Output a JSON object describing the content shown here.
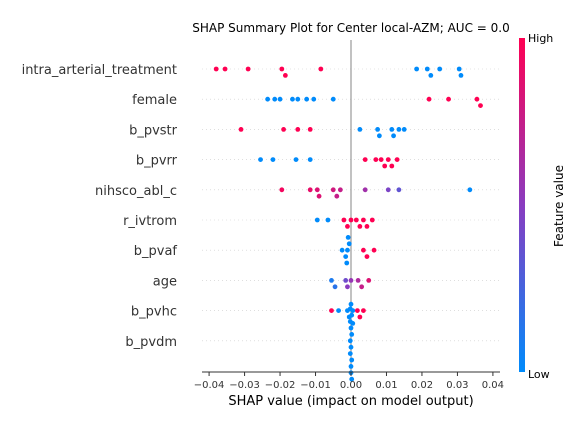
{
  "chart_data": {
    "type": "scatter",
    "title": "SHAP Summary Plot for Center local-AZM; AUC = 0.0",
    "xlabel": "SHAP value (impact on model output)",
    "xlim": [
      -0.042,
      0.042
    ],
    "xticks": [
      -0.04,
      -0.03,
      -0.02,
      -0.01,
      0.0,
      0.01,
      0.02,
      0.03,
      0.04
    ],
    "xtick_labels": [
      "−0.04",
      "−0.03",
      "−0.02",
      "−0.01",
      "0.00",
      "0.01",
      "0.02",
      "0.03",
      "0.04"
    ],
    "grid": false,
    "colorbar": {
      "label": "Feature value",
      "high": "High",
      "low": "Low",
      "low_color": "#008bfb",
      "high_color": "#ff0052"
    },
    "features": [
      "intra_arterial_treatment",
      "female",
      "b_pvstr",
      "b_pvrr",
      "nihsco_abl_c",
      "r_ivtrom",
      "b_pvaf",
      "age",
      "b_pvhc",
      "b_pvdm"
    ],
    "series": [
      {
        "feature": "intra_arterial_treatment",
        "points": [
          [
            -0.038,
            1.0
          ],
          [
            -0.0355,
            1.0
          ],
          [
            -0.029,
            1.0
          ],
          [
            -0.0195,
            1.0
          ],
          [
            -0.0185,
            1.0
          ],
          [
            -0.0085,
            1.0
          ],
          [
            0.0185,
            0.0
          ],
          [
            0.0215,
            0.0
          ],
          [
            0.0225,
            0.0
          ],
          [
            0.025,
            0.0
          ],
          [
            0.0305,
            0.0
          ],
          [
            0.031,
            0.0
          ]
        ]
      },
      {
        "feature": "female",
        "points": [
          [
            -0.0235,
            0.0
          ],
          [
            -0.0215,
            0.0
          ],
          [
            -0.02,
            0.0
          ],
          [
            -0.0165,
            0.0
          ],
          [
            -0.015,
            0.0
          ],
          [
            -0.0125,
            0.0
          ],
          [
            -0.0105,
            0.0
          ],
          [
            -0.005,
            0.0
          ],
          [
            0.022,
            1.0
          ],
          [
            0.0275,
            1.0
          ],
          [
            0.0355,
            1.0
          ],
          [
            0.0365,
            1.0
          ]
        ]
      },
      {
        "feature": "b_pvstr",
        "points": [
          [
            -0.031,
            1.0
          ],
          [
            -0.019,
            1.0
          ],
          [
            -0.015,
            1.0
          ],
          [
            -0.0115,
            1.0
          ],
          [
            0.0025,
            0.0
          ],
          [
            0.0075,
            0.0
          ],
          [
            0.008,
            0.0
          ],
          [
            0.0115,
            0.0
          ],
          [
            0.012,
            0.0
          ],
          [
            0.0135,
            0.0
          ],
          [
            0.015,
            0.0
          ]
        ]
      },
      {
        "feature": "b_pvrr",
        "points": [
          [
            -0.0255,
            0.0
          ],
          [
            -0.022,
            0.0
          ],
          [
            -0.0155,
            0.0
          ],
          [
            -0.0115,
            0.0
          ],
          [
            0.004,
            1.0
          ],
          [
            0.007,
            1.0
          ],
          [
            0.0085,
            1.0
          ],
          [
            0.0095,
            1.0
          ],
          [
            0.0105,
            1.0
          ],
          [
            0.0115,
            1.0
          ],
          [
            0.013,
            1.0
          ]
        ]
      },
      {
        "feature": "nihsco_abl_c",
        "points": [
          [
            -0.0195,
            0.95
          ],
          [
            -0.0115,
            0.9
          ],
          [
            -0.0095,
            0.85
          ],
          [
            -0.009,
            0.85
          ],
          [
            -0.005,
            0.8
          ],
          [
            -0.004,
            0.75
          ],
          [
            -0.003,
            0.75
          ],
          [
            0.004,
            0.6
          ],
          [
            0.0105,
            0.45
          ],
          [
            0.0135,
            0.35
          ],
          [
            0.0335,
            0.0
          ]
        ]
      },
      {
        "feature": "r_ivtrom",
        "points": [
          [
            -0.0095,
            0.0
          ],
          [
            -0.0065,
            0.0
          ],
          [
            -0.002,
            1.0
          ],
          [
            -0.001,
            1.0
          ],
          [
            0.0,
            1.0
          ],
          [
            0.0015,
            1.0
          ],
          [
            0.0025,
            1.0
          ],
          [
            0.0035,
            1.0
          ],
          [
            0.0045,
            1.0
          ],
          [
            0.006,
            1.0
          ]
        ]
      },
      {
        "feature": "b_pvaf",
        "points": [
          [
            -0.0025,
            0.0
          ],
          [
            -0.0015,
            0.0
          ],
          [
            -0.001,
            0.0
          ],
          [
            -0.0005,
            0.0
          ],
          [
            -0.0012,
            0.0
          ],
          [
            -0.0008,
            0.0
          ],
          [
            0.0035,
            1.0
          ],
          [
            0.0045,
            1.0
          ],
          [
            0.0065,
            1.0
          ]
        ]
      },
      {
        "feature": "age",
        "points": [
          [
            -0.0055,
            0.1
          ],
          [
            -0.0045,
            0.15
          ],
          [
            -0.0015,
            0.4
          ],
          [
            -0.001,
            0.5
          ],
          [
            0.0,
            0.55
          ],
          [
            0.002,
            0.65
          ],
          [
            0.003,
            0.75
          ],
          [
            0.005,
            0.85
          ]
        ]
      },
      {
        "feature": "b_pvhc",
        "points": [
          [
            -0.0055,
            1.0
          ],
          [
            -0.0035,
            0.0
          ],
          [
            -0.001,
            0.0
          ],
          [
            -0.0005,
            0.0
          ],
          [
            0.0,
            0.0
          ],
          [
            0.0005,
            0.0
          ],
          [
            0.0005,
            0.0
          ],
          [
            0.0018,
            1.0
          ],
          [
            0.0025,
            1.0
          ],
          [
            0.0035,
            1.0
          ]
        ]
      },
      {
        "feature": "b_pvdm",
        "points": [
          [
            -0.0002,
            0.0
          ],
          [
            0.0,
            0.0
          ],
          [
            0.0002,
            0.0
          ],
          [
            -0.0002,
            0.0
          ],
          [
            0.0,
            0.0
          ],
          [
            0.0002,
            0.0
          ],
          [
            -0.0002,
            0.0
          ],
          [
            0.0,
            0.0
          ],
          [
            0.0002,
            0.0
          ],
          [
            0.0,
            0.0
          ],
          [
            -0.0002,
            0.0
          ],
          [
            0.0002,
            0.0
          ]
        ]
      }
    ]
  }
}
